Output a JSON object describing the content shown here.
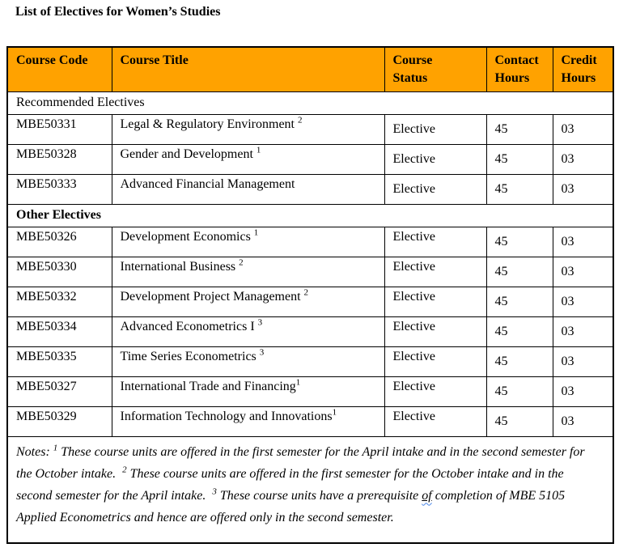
{
  "title": "List of Electives for Women’s Studies",
  "colors": {
    "header_bg": "#FFA200",
    "border": "#000000",
    "grammar_wavy_underline": "#4a86e8",
    "text": "#000000"
  },
  "table": {
    "columns": [
      "Course Code",
      "Course Title",
      "Course\nStatus",
      "Contact\nHours",
      "Credit\nHours"
    ],
    "sections": [
      {
        "label": "Recommended Electives",
        "bold": false,
        "rows": [
          {
            "code": "MBE50331",
            "title": "Legal & Regulatory Environment ",
            "sup": "2",
            "status": "Elective",
            "contact": "45",
            "credit": "03"
          },
          {
            "code": "MBE50328",
            "title": "Gender and Development ",
            "sup": "1",
            "status": "Elective",
            "contact": "45",
            "credit": "03"
          },
          {
            "code": "MBE50333",
            "title": "Advanced Financial Management",
            "sup": "",
            "status": "Elective",
            "contact": "45",
            "credit": "03"
          }
        ]
      },
      {
        "label": "Other Electives",
        "bold": true,
        "rows": [
          {
            "code": "MBE50326",
            "title": "Development Economics ",
            "sup": "1",
            "status": "Elective",
            "contact": "45",
            "credit": "03"
          },
          {
            "code": "MBE50330",
            "title": "International Business ",
            "sup": "2",
            "status": "Elective",
            "contact": "45",
            "credit": "03"
          },
          {
            "code": "MBE50332",
            "title": "Development Project Management ",
            "sup": "2",
            "status": "Elective",
            "contact": "45",
            "credit": "03"
          },
          {
            "code": "MBE50334",
            "title": "Advanced Econometrics I ",
            "sup": "3",
            "status": "Elective",
            "contact": "45",
            "credit": "03"
          },
          {
            "code": "MBE50335",
            "title": "Time Series Econometrics ",
            "sup": "3",
            "status": "Elective",
            "contact": "45",
            "credit": "03"
          },
          {
            "code": "MBE50327",
            "title": "International Trade and Financing",
            "sup": "1",
            "status": "Elective",
            "contact": "45",
            "credit": "03"
          },
          {
            "code": "MBE50329",
            "title": "Information Technology and Innovations",
            "sup": "1",
            "status": "Elective",
            "contact": "45",
            "credit": "03"
          }
        ]
      }
    ]
  },
  "notes": {
    "segments": [
      {
        "text": "Notes: ",
        "style": "text"
      },
      {
        "text": "1",
        "style": "sup"
      },
      {
        "text": " These course units are offered in the first semester for the April intake and in the second semester for the October intake.  ",
        "style": "text"
      },
      {
        "text": "2",
        "style": "sup"
      },
      {
        "text": " These course units are offered in the first semester for the October intake and in the second semester for the April intake.  ",
        "style": "text"
      },
      {
        "text": "3",
        "style": "sup"
      },
      {
        "text": " These course units have a prerequisite ",
        "style": "text"
      },
      {
        "text": "of",
        "style": "underline"
      },
      {
        "text": " completion of MBE 5105 Applied Econometrics and hence are offered only in the second semester.",
        "style": "text"
      }
    ]
  }
}
